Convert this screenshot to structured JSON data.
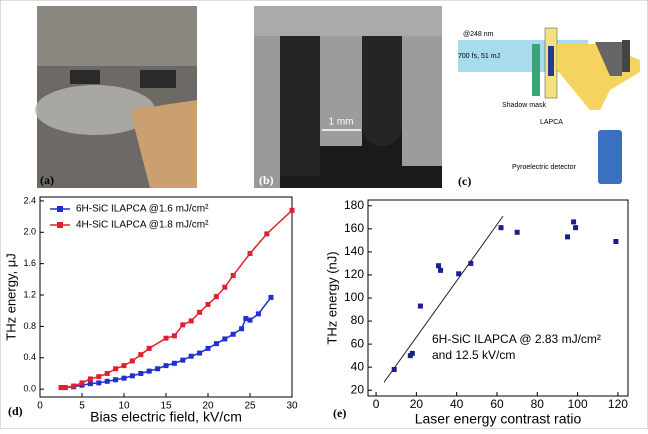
{
  "panels": {
    "a": {
      "label": "(a)"
    },
    "b": {
      "label": "(b)",
      "scale_label": "1 mm"
    },
    "c": {
      "label": "(c)",
      "wavelength": "@248 nm",
      "pulse": "700 fs, 51 mJ",
      "mask": "Shadow mask",
      "device": "LAPCA",
      "detector": "Pyroelectric detector"
    }
  },
  "chart_data": [
    {
      "type": "scatter",
      "panel_label": "(d)",
      "connect": true,
      "legend": "upper left",
      "x_label": "Bias electric field, kV/cm",
      "y_label": "THz energy, μJ",
      "xlim": [
        0,
        30
      ],
      "xticks": [
        0,
        5,
        10,
        15,
        20,
        25,
        30
      ],
      "ylim": [
        -0.1,
        2.45
      ],
      "yticks": [
        {
          "value": 0,
          "label": "0.0"
        },
        0.4,
        0.8,
        1.2,
        1.6,
        {
          "value": 2,
          "label": "2.0"
        },
        2.4
      ],
      "series": [
        {
          "name": "6H-SiC ILAPCA @1.6 mJ/cm²",
          "color": "#1f2fd0",
          "x": [
            3,
            4,
            5,
            6,
            7,
            8,
            9,
            10,
            11,
            12,
            13,
            14,
            15,
            16,
            17,
            18,
            19,
            20,
            21,
            22,
            23,
            24,
            24.5,
            25,
            26,
            27.5
          ],
          "values": [
            0.02,
            0.03,
            0.05,
            0.07,
            0.08,
            0.1,
            0.12,
            0.14,
            0.17,
            0.2,
            0.23,
            0.26,
            0.3,
            0.33,
            0.37,
            0.42,
            0.46,
            0.52,
            0.58,
            0.64,
            0.7,
            0.77,
            0.9,
            0.88,
            0.96,
            1.17
          ]
        },
        {
          "name": "4H-SiC ILAPCA @1.8 mJ/cm²",
          "color": "#e0202c",
          "x": [
            2.5,
            3,
            4,
            5,
            6,
            7,
            8,
            9,
            10,
            11,
            12,
            13,
            15,
            16,
            17,
            18,
            19,
            20,
            21,
            22,
            23,
            25,
            27,
            30
          ],
          "values": [
            0.02,
            0.02,
            0.04,
            0.08,
            0.13,
            0.16,
            0.2,
            0.26,
            0.3,
            0.36,
            0.44,
            0.52,
            0.65,
            0.68,
            0.82,
            0.87,
            0.98,
            1.08,
            1.18,
            1.3,
            1.45,
            1.73,
            1.98,
            2.28
          ]
        }
      ]
    },
    {
      "type": "scatter",
      "panel_label": "(e)",
      "connect": false,
      "x_label": "Laser energy contrast ratio",
      "y_label": "THz energy (nJ)",
      "annotation": [
        "6H-SiC ILAPCA @ 2.83 mJ/cm²",
        "and 12.5 kV/cm"
      ],
      "xlim": [
        -4,
        125
      ],
      "xticks": [
        0,
        20,
        40,
        60,
        80,
        100,
        120
      ],
      "ylim": [
        15,
        185
      ],
      "yticks": [
        20,
        40,
        60,
        80,
        100,
        120,
        140,
        160,
        180
      ],
      "trend_line": {
        "x": [
          4,
          63
        ],
        "values": [
          27,
          171
        ],
        "color": "#222222"
      },
      "series": [
        {
          "color": "#1a1f8a",
          "x": [
            9,
            17,
            18,
            22,
            31,
            32,
            41,
            47,
            62,
            70,
            95,
            98,
            99,
            119
          ],
          "values": [
            38,
            50,
            52,
            93,
            128,
            124,
            121,
            130,
            161,
            157,
            153,
            166,
            161,
            149
          ]
        }
      ]
    }
  ]
}
